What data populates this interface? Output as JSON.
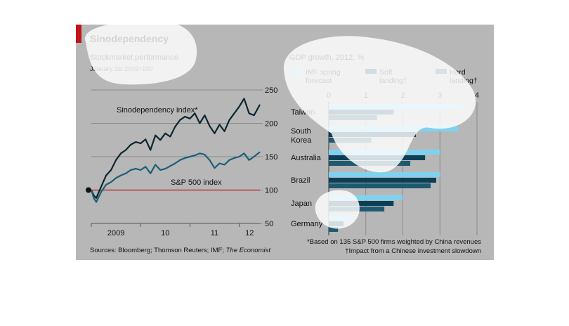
{
  "title": "Sinodependency",
  "sources_prefix": "Sources: Bloomberg; Thomson Reuters; IMF; ",
  "sources_italic": "The Economist",
  "footnote_1": "*Based on 135 S&P 500 firms weighted by China revenues",
  "footnote_2": "†Impact from a Chinese investment slowdown",
  "colors": {
    "panel": "#b7b7b7",
    "accent": "#c0141a",
    "sinodependency_line": "#0c2530",
    "sp500_line": "#1b5f78",
    "imf": "#7fd2ef",
    "soft": "#0b3f57",
    "hard": "#1e5970",
    "baseline": "#b01818"
  },
  "chart_data": [
    {
      "type": "line",
      "title": "Stockmarket performance",
      "subtitle": "January 1st 2009=100",
      "x_tick_labels": [
        "2009",
        "10",
        "11",
        "12"
      ],
      "x_range": [
        2009.0,
        2012.42
      ],
      "ylim": [
        50,
        250
      ],
      "y_ticks": [
        50,
        100,
        150,
        200,
        250
      ],
      "y_axis_side": "right",
      "reference_line": 100,
      "grid": true,
      "series": [
        {
          "name": "Sinodependency index*",
          "x": [
            2009.0,
            2009.05,
            2009.1,
            2009.2,
            2009.3,
            2009.4,
            2009.5,
            2009.6,
            2009.7,
            2009.8,
            2009.9,
            2010.0,
            2010.1,
            2010.2,
            2010.3,
            2010.4,
            2010.5,
            2010.6,
            2010.7,
            2010.8,
            2010.9,
            2011.0,
            2011.1,
            2011.2,
            2011.3,
            2011.4,
            2011.5,
            2011.6,
            2011.7,
            2011.8,
            2011.9,
            2012.0,
            2012.1,
            2012.2,
            2012.3,
            2012.42
          ],
          "values": [
            100,
            92,
            88,
            105,
            122,
            130,
            145,
            155,
            160,
            168,
            172,
            170,
            176,
            160,
            182,
            175,
            185,
            180,
            195,
            205,
            210,
            207,
            215,
            200,
            212,
            196,
            185,
            198,
            188,
            205,
            215,
            225,
            237,
            215,
            212,
            228
          ]
        },
        {
          "name": "S&P 500 index",
          "x": [
            2009.0,
            2009.05,
            2009.1,
            2009.2,
            2009.3,
            2009.4,
            2009.5,
            2009.6,
            2009.7,
            2009.8,
            2009.9,
            2010.0,
            2010.1,
            2010.2,
            2010.3,
            2010.4,
            2010.5,
            2010.6,
            2010.7,
            2010.8,
            2010.9,
            2011.0,
            2011.1,
            2011.2,
            2011.3,
            2011.4,
            2011.5,
            2011.6,
            2011.7,
            2011.8,
            2011.9,
            2012.0,
            2012.1,
            2012.2,
            2012.3,
            2012.42
          ],
          "values": [
            100,
            88,
            82,
            97,
            108,
            112,
            118,
            122,
            125,
            130,
            132,
            130,
            135,
            125,
            138,
            130,
            132,
            136,
            140,
            145,
            148,
            150,
            152,
            155,
            153,
            145,
            133,
            140,
            138,
            145,
            148,
            150,
            155,
            145,
            150,
            157
          ]
        }
      ]
    },
    {
      "type": "bar",
      "orientation": "horizontal",
      "title": "GDP growth, 2012, %",
      "categories": [
        "Taiwan",
        "South Korea",
        "Australia",
        "Brazil",
        "Japan",
        "Germany"
      ],
      "xlim": [
        0,
        4
      ],
      "x_ticks": [
        0,
        1,
        2,
        3,
        4
      ],
      "legend_position": "top",
      "series": [
        {
          "name": "IMF spring forecast",
          "values": [
            3.6,
            3.5,
            3.0,
            3.0,
            2.0,
            0.6
          ]
        },
        {
          "name": "Soft landing†",
          "values": [
            1.75,
            2.35,
            2.6,
            2.9,
            1.75,
            0.4
          ]
        },
        {
          "name": "Hard landing†",
          "values": [
            1.3,
            1.15,
            2.2,
            2.75,
            1.5,
            0.25
          ]
        }
      ]
    }
  ]
}
